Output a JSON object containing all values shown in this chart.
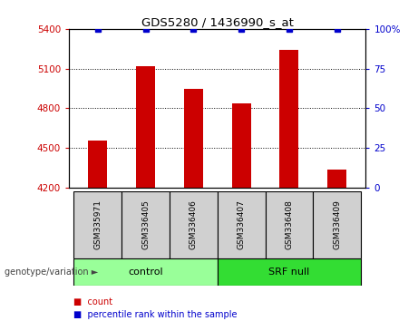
{
  "title": "GDS5280 / 1436990_s_at",
  "samples": [
    "GSM335971",
    "GSM336405",
    "GSM336406",
    "GSM336407",
    "GSM336408",
    "GSM336409"
  ],
  "counts": [
    4560,
    5120,
    4950,
    4840,
    5240,
    4340
  ],
  "percentiles": [
    100,
    100,
    100,
    100,
    100,
    100
  ],
  "ylim_left": [
    4200,
    5400
  ],
  "ylim_right": [
    0,
    100
  ],
  "yticks_left": [
    4200,
    4500,
    4800,
    5100,
    5400
  ],
  "yticks_right": [
    0,
    25,
    50,
    75,
    100
  ],
  "bar_color": "#cc0000",
  "percentile_color": "#0000cc",
  "groups": [
    {
      "label": "control",
      "indices": [
        0,
        1,
        2
      ],
      "color": "#99ff99"
    },
    {
      "label": "SRF null",
      "indices": [
        3,
        4,
        5
      ],
      "color": "#33dd33"
    }
  ],
  "group_label": "genotype/variation",
  "legend_count_label": "count",
  "legend_percentile_label": "percentile rank within the sample",
  "background_color": "#ffffff",
  "sample_box_color": "#d0d0d0",
  "bar_width": 0.4
}
